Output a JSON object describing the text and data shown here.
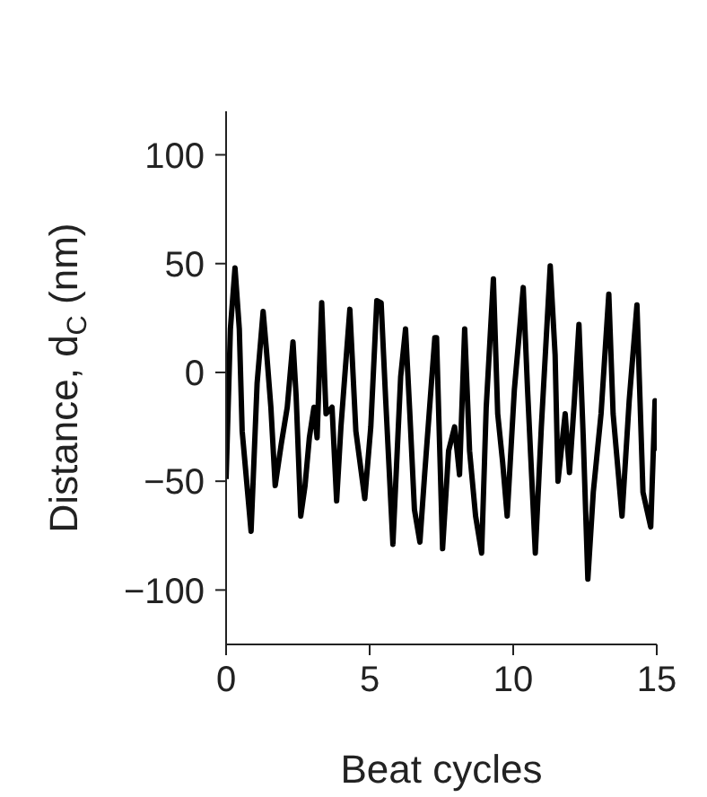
{
  "chart_data": {
    "type": "line",
    "xlabel": "Beat cycles",
    "ylabel": "Distance, d$_{C}$ (nm)",
    "xlim": [
      0,
      15
    ],
    "xticks": [
      0,
      5,
      10,
      15
    ],
    "ylim": [
      -125,
      120
    ],
    "yticks": [
      -100,
      -50,
      0,
      50,
      100
    ],
    "grid": false,
    "legend": false,
    "marker": "none",
    "line_style": "solid",
    "x": [
      0,
      0.15,
      0.31,
      0.46,
      0.56,
      0.87,
      1.08,
      1.29,
      1.4,
      1.56,
      1.71,
      1.92,
      2.13,
      2.33,
      2.44,
      2.6,
      2.75,
      2.9,
      3.06,
      3.17,
      3.33,
      3.48,
      3.69,
      3.85,
      4.0,
      4.31,
      4.52,
      4.83,
      5.04,
      5.25,
      5.4,
      5.56,
      5.81,
      6.08,
      6.25,
      6.4,
      6.56,
      6.75,
      6.92,
      7.27,
      7.33,
      7.54,
      7.75,
      7.96,
      8.13,
      8.31,
      8.48,
      8.69,
      8.9,
      9.06,
      9.31,
      9.46,
      9.63,
      9.79,
      10.04,
      10.35,
      10.5,
      10.77,
      10.98,
      11.29,
      11.46,
      11.56,
      11.81,
      11.96,
      12.13,
      12.29,
      12.44,
      12.6,
      12.79,
      13.06,
      13.33,
      13.48,
      13.79,
      14.04,
      14.31,
      14.52,
      14.79,
      14.94,
      15.0
    ],
    "series": [
      {
        "color": "#000000",
        "values": [
          -49,
          20,
          48,
          20,
          -27,
          -73,
          -5,
          28,
          11,
          -16,
          -52,
          -33,
          -16,
          14,
          -11,
          -66,
          -52,
          -30,
          -16,
          -30,
          32,
          -19,
          -16,
          -59,
          -25,
          29,
          -27,
          -58,
          -25,
          33,
          32,
          -13,
          -79,
          -2,
          20,
          -19,
          -63,
          -78,
          -46,
          16,
          16,
          -81,
          -36,
          -25,
          -47,
          20,
          -36,
          -66,
          -83,
          -16,
          43,
          -19,
          -41,
          -66,
          -8,
          39,
          -8,
          -83,
          -25,
          49,
          8,
          -50,
          -19,
          -46,
          -13,
          22,
          -30,
          -95,
          -55,
          -19,
          36,
          -19,
          -66,
          -13,
          31,
          -55,
          -71,
          -13,
          -36
        ]
      }
    ]
  }
}
